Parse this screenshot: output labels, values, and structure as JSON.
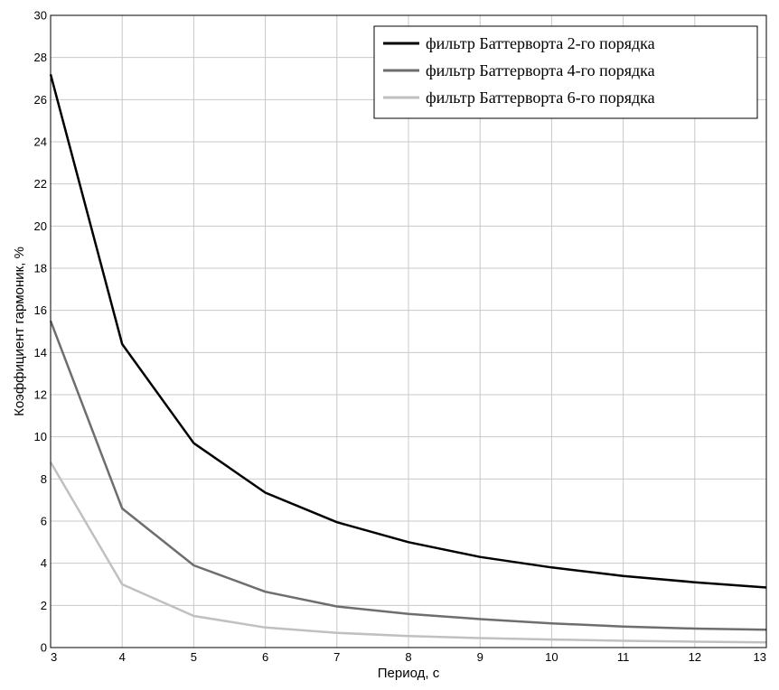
{
  "chart_data": {
    "type": "line",
    "xlabel": "Период, с",
    "ylabel": "Коэффициент гармоник, %",
    "xlim": [
      3,
      13
    ],
    "ylim": [
      0,
      30
    ],
    "x_ticks": [
      3,
      4,
      5,
      6,
      7,
      8,
      9,
      10,
      11,
      12,
      13
    ],
    "y_ticks": [
      0,
      2,
      4,
      6,
      8,
      10,
      12,
      14,
      16,
      18,
      20,
      22,
      24,
      26,
      28,
      30
    ],
    "grid": true,
    "legend_position": "top-right",
    "x": [
      3,
      4,
      5,
      6,
      7,
      8,
      9,
      10,
      11,
      12,
      13
    ],
    "series": [
      {
        "name": "фильтр Баттерворта 2-го порядка",
        "color": "#000000",
        "values": [
          27.2,
          14.4,
          9.7,
          7.35,
          5.95,
          5.0,
          4.3,
          3.8,
          3.4,
          3.1,
          2.85
        ]
      },
      {
        "name": "фильтр Баттерворта 4-го порядка",
        "color": "#6e6e6e",
        "values": [
          15.5,
          6.6,
          3.9,
          2.65,
          1.95,
          1.6,
          1.35,
          1.15,
          1.0,
          0.9,
          0.85
        ]
      },
      {
        "name": "фильтр Баттерворта 6-го порядка",
        "color": "#c0c0c0",
        "values": [
          8.8,
          3.0,
          1.5,
          0.95,
          0.7,
          0.55,
          0.45,
          0.38,
          0.32,
          0.28,
          0.25
        ]
      }
    ]
  }
}
